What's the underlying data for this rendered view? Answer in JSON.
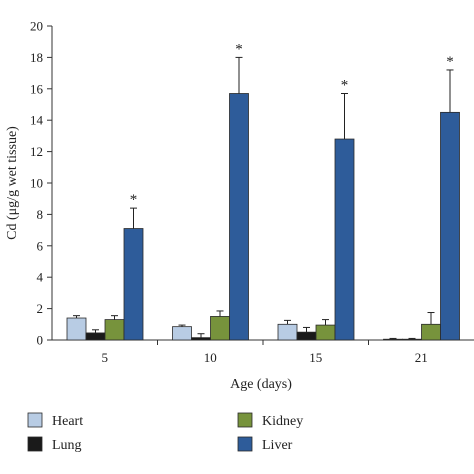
{
  "chart_data": {
    "type": "bar",
    "categories": [
      "5",
      "10",
      "15",
      "21"
    ],
    "xlabel": "Age (days)",
    "ylabel": "Cd (μg/g wet tissue)",
    "ylim": [
      0,
      20
    ],
    "yticks": [
      0,
      2,
      4,
      6,
      8,
      10,
      12,
      14,
      16,
      18,
      20
    ],
    "grid": false,
    "legend_position": "bottom",
    "series": [
      {
        "name": "Heart",
        "color": "#b8cce4",
        "values": [
          1.4,
          0.85,
          1.0,
          0.05
        ],
        "errors": [
          0.15,
          0.1,
          0.25,
          0.05
        ]
      },
      {
        "name": "Lung",
        "color": "#1a1a1a",
        "values": [
          0.45,
          0.15,
          0.5,
          0.05
        ],
        "errors": [
          0.2,
          0.25,
          0.3,
          0.05
        ]
      },
      {
        "name": "Kidney",
        "color": "#77933c",
        "values": [
          1.3,
          1.5,
          0.95,
          1.0
        ],
        "errors": [
          0.25,
          0.35,
          0.35,
          0.75
        ]
      },
      {
        "name": "Liver",
        "color": "#2e5c9a",
        "values": [
          7.1,
          15.7,
          12.8,
          14.5
        ],
        "errors": [
          1.3,
          2.3,
          2.9,
          2.7
        ]
      }
    ],
    "annotations": [
      {
        "series": "Liver",
        "category": "5",
        "text": "*"
      },
      {
        "series": "Liver",
        "category": "10",
        "text": "*"
      },
      {
        "series": "Liver",
        "category": "15",
        "text": "*"
      },
      {
        "series": "Liver",
        "category": "21",
        "text": "*"
      }
    ]
  }
}
